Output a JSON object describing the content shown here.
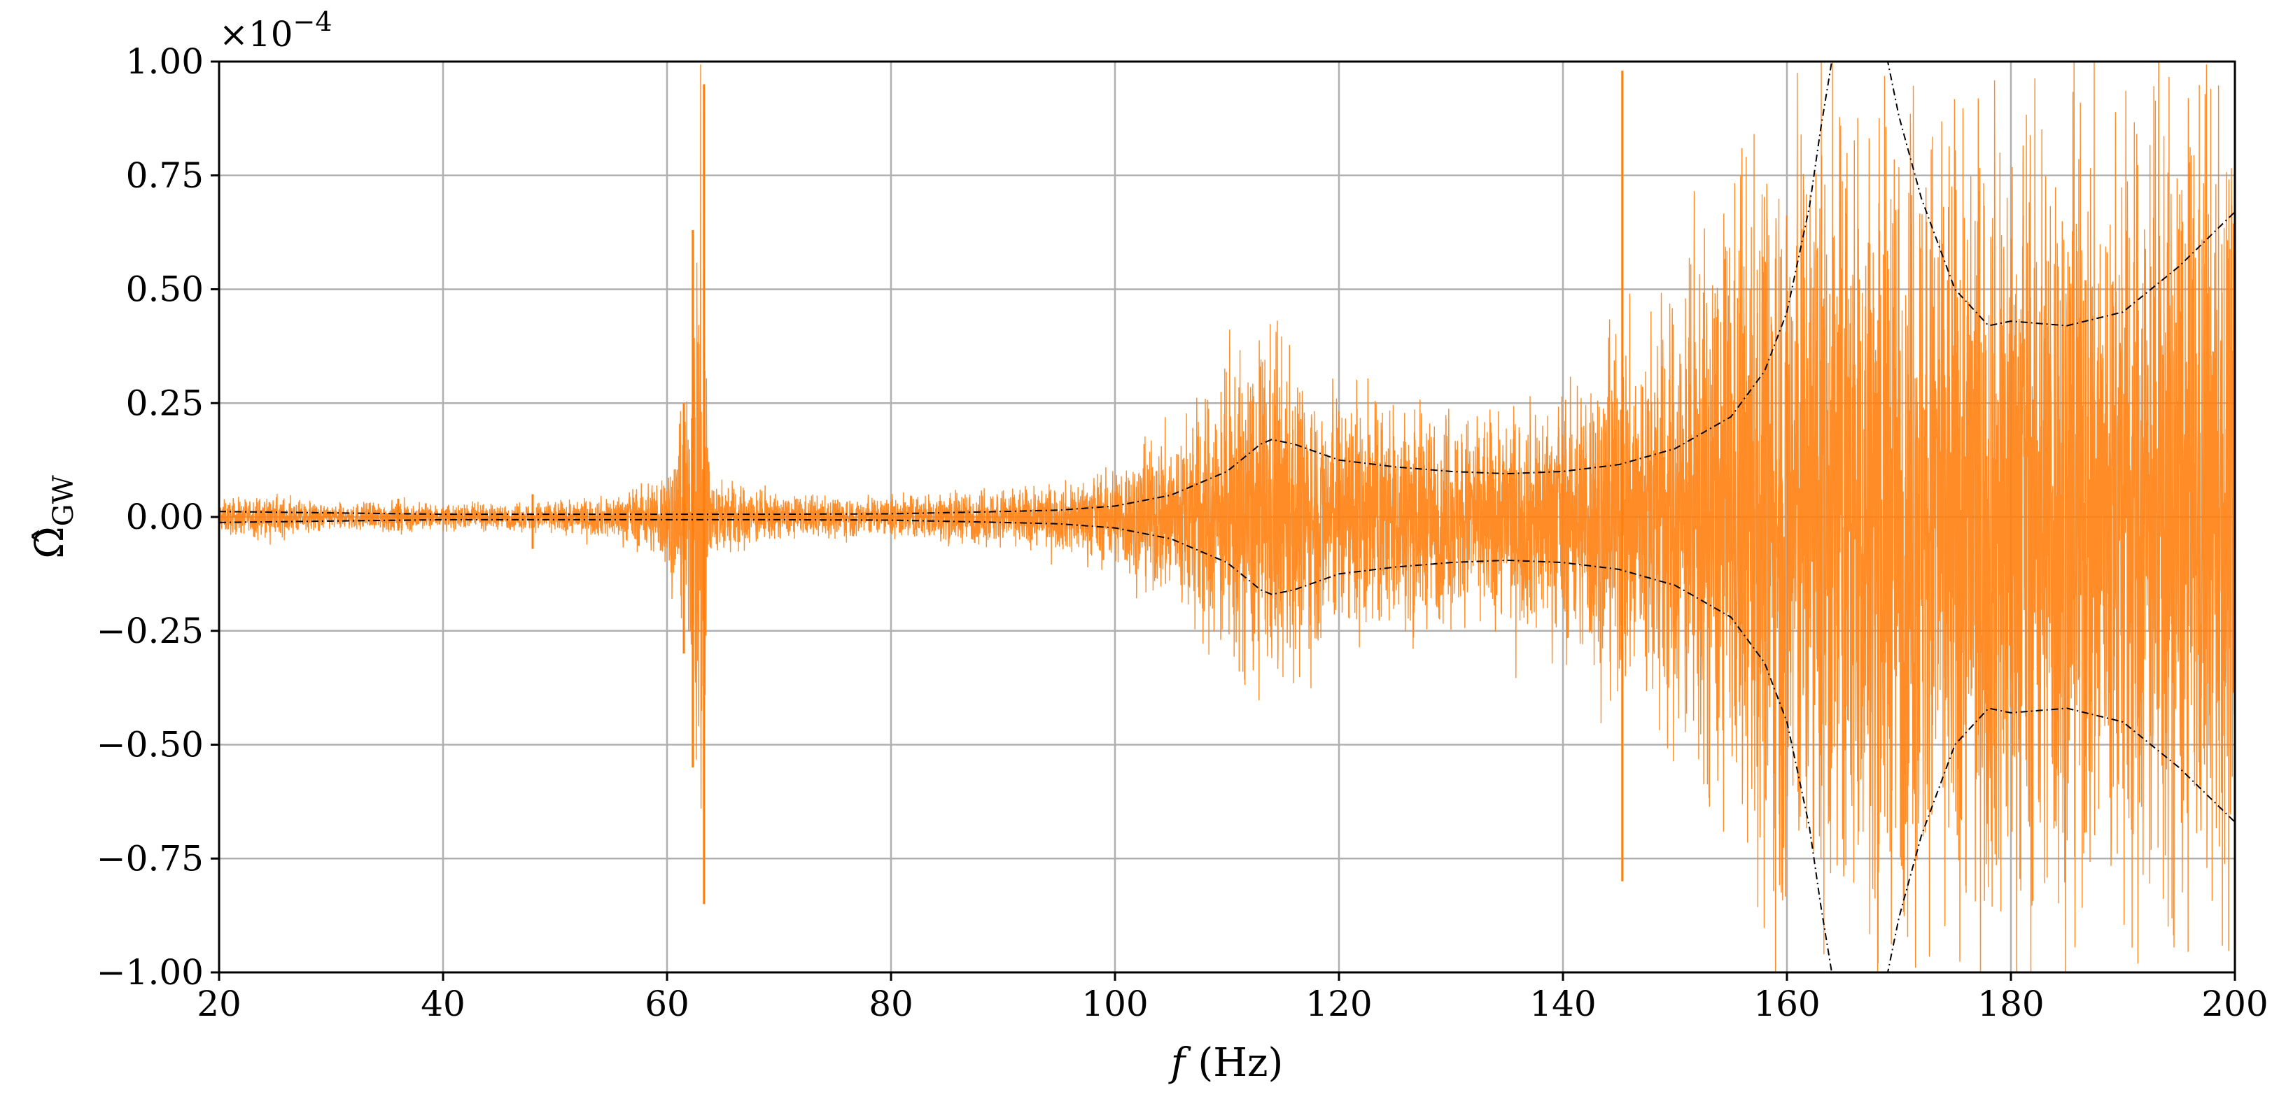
{
  "chart_data": {
    "type": "line",
    "title": "",
    "xlabel": "f (Hz)",
    "xlabel_italic_part": "f",
    "xlabel_unit_part": "(Hz)",
    "ylabel": "Ω̂_GW",
    "ylabel_main": "Ω̂",
    "ylabel_sub": "GW",
    "y_scale_label": "×10",
    "y_scale_exponent": "−4",
    "xlim": [
      20,
      200
    ],
    "ylim": [
      -1.0,
      1.0
    ],
    "y_multiplier": 0.0001,
    "grid": true,
    "x_ticks": [
      20,
      40,
      60,
      80,
      100,
      120,
      140,
      160,
      180,
      200
    ],
    "x_tick_labels": [
      "20",
      "40",
      "60",
      "80",
      "100",
      "120",
      "140",
      "160",
      "180",
      "200"
    ],
    "y_ticks": [
      -1.0,
      -0.75,
      -0.5,
      -0.25,
      0.0,
      0.25,
      0.5,
      0.75,
      1.0
    ],
    "y_tick_labels": [
      "−1.00",
      "−0.75",
      "−0.50",
      "−0.25",
      "0.00",
      "0.25",
      "0.50",
      "0.75",
      "1.00"
    ],
    "series": [
      {
        "color": "#ff7f0e",
        "style": "noisy point estimate",
        "envelope_points": [
          [
            20,
            0.04
          ],
          [
            25,
            0.05
          ],
          [
            30,
            0.03
          ],
          [
            35,
            0.04
          ],
          [
            40,
            0.03
          ],
          [
            45,
            0.03
          ],
          [
            50,
            0.04
          ],
          [
            55,
            0.05
          ],
          [
            58,
            0.08
          ],
          [
            60,
            0.12
          ],
          [
            62,
            0.3
          ],
          [
            63,
            0.95
          ],
          [
            64,
            0.1
          ],
          [
            70,
            0.05
          ],
          [
            80,
            0.05
          ],
          [
            90,
            0.07
          ],
          [
            95,
            0.08
          ],
          [
            100,
            0.12
          ],
          [
            105,
            0.22
          ],
          [
            110,
            0.35
          ],
          [
            114,
            0.45
          ],
          [
            118,
            0.32
          ],
          [
            125,
            0.28
          ],
          [
            130,
            0.25
          ],
          [
            135,
            0.26
          ],
          [
            140,
            0.3
          ],
          [
            145,
            0.45
          ],
          [
            150,
            0.55
          ],
          [
            155,
            0.75
          ],
          [
            158,
            0.95
          ],
          [
            160,
            1.0
          ],
          [
            170,
            1.0
          ],
          [
            180,
            1.0
          ],
          [
            190,
            1.0
          ],
          [
            200,
            1.0
          ]
        ]
      },
      {
        "color": "#000000",
        "style": "dash-dot sensitivity envelope (±)",
        "points": [
          [
            20,
            0.012
          ],
          [
            40,
            0.006
          ],
          [
            60,
            0.006
          ],
          [
            70,
            0.006
          ],
          [
            80,
            0.007
          ],
          [
            90,
            0.012
          ],
          [
            95,
            0.015
          ],
          [
            100,
            0.024
          ],
          [
            105,
            0.048
          ],
          [
            110,
            0.1
          ],
          [
            113,
            0.16
          ],
          [
            114,
            0.17
          ],
          [
            116,
            0.16
          ],
          [
            120,
            0.125
          ],
          [
            125,
            0.11
          ],
          [
            130,
            0.1
          ],
          [
            135,
            0.095
          ],
          [
            140,
            0.1
          ],
          [
            145,
            0.115
          ],
          [
            150,
            0.15
          ],
          [
            155,
            0.22
          ],
          [
            158,
            0.32
          ],
          [
            160,
            0.45
          ],
          [
            162,
            0.68
          ],
          [
            163,
            0.85
          ],
          [
            164,
            1.0
          ],
          [
            169,
            1.0
          ],
          [
            170,
            0.88
          ],
          [
            172,
            0.7
          ],
          [
            175,
            0.5
          ],
          [
            178,
            0.42
          ],
          [
            180,
            0.43
          ],
          [
            185,
            0.42
          ],
          [
            190,
            0.45
          ],
          [
            195,
            0.55
          ],
          [
            200,
            0.67
          ]
        ]
      }
    ],
    "spikes": [
      {
        "x": 36,
        "y_min": -0.03,
        "y_max": 0.04
      },
      {
        "x": 48,
        "y_min": -0.07,
        "y_max": 0.05
      },
      {
        "x": 61.5,
        "y_min": -0.3,
        "y_max": 0.25
      },
      {
        "x": 62.3,
        "y_min": -0.55,
        "y_max": 0.63
      },
      {
        "x": 63.3,
        "y_min": -0.85,
        "y_max": 0.95
      },
      {
        "x": 145.3,
        "y_min": -0.8,
        "y_max": 0.98
      }
    ]
  }
}
